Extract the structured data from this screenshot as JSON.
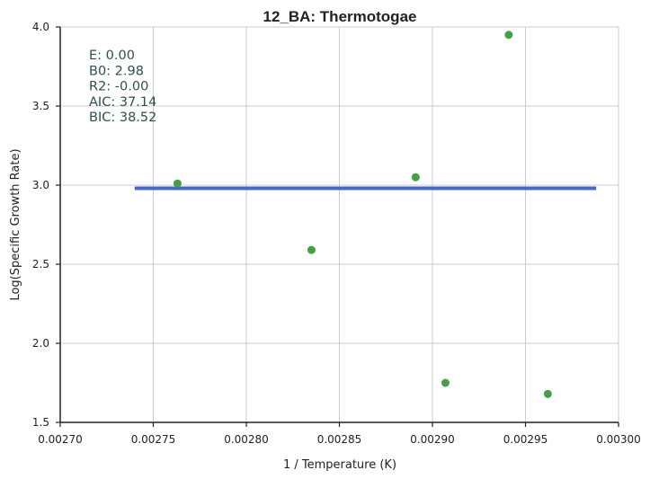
{
  "chart_data": {
    "type": "scatter",
    "title": "12_BA: Thermotogae",
    "xlabel": "1 / Temperature (K)",
    "ylabel": "Log(Specific Growth Rate)",
    "xlim": [
      0.0027,
      0.003
    ],
    "ylim": [
      1.5,
      4.0
    ],
    "xticks": [
      "0.00270",
      "0.00275",
      "0.00280",
      "0.00285",
      "0.00290",
      "0.00295",
      "0.00300"
    ],
    "yticks": [
      "1.5",
      "2.0",
      "2.5",
      "3.0",
      "3.5",
      "4.0"
    ],
    "grid": true,
    "points": {
      "color": "#43a047",
      "x": [
        0.002763,
        0.002835,
        0.002891,
        0.002907,
        0.002941,
        0.002962
      ],
      "y": [
        3.01,
        2.59,
        3.05,
        1.75,
        3.95,
        1.68
      ]
    },
    "fit_line": {
      "color": "#4169d4",
      "x": [
        0.00274,
        0.002988
      ],
      "y": [
        2.98,
        2.98
      ]
    },
    "annotations": [
      "E:  0.00",
      "B0:  2.98",
      "R2:  -0.00",
      "AIC: 37.14",
      "BIC: 38.52"
    ]
  }
}
